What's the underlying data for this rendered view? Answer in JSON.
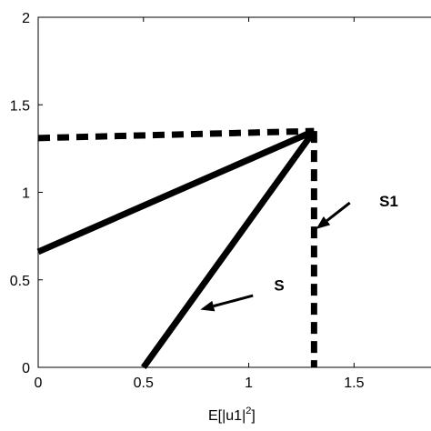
{
  "chart_data": {
    "type": "line",
    "title": "",
    "xlabel": "E[|u1|",
    "xlabel_sup": "2",
    "xlabel_suffix": "]",
    "ylabel": "",
    "xlim": [
      0,
      1.9
    ],
    "ylim": [
      0,
      2
    ],
    "xticks": [
      0,
      0.5,
      1,
      1.5
    ],
    "xtick_labels": [
      "0",
      "0.5",
      "1",
      "1.5"
    ],
    "yticks": [
      0,
      0.5,
      1,
      1.5,
      2
    ],
    "ytick_labels": [
      "0",
      "0.5",
      "1",
      "1.5",
      "2"
    ],
    "grid": false,
    "series": [
      {
        "style": "solid-thick",
        "x": [
          0,
          1.31
        ],
        "y": [
          0.66,
          1.35
        ]
      },
      {
        "style": "solid-thick",
        "x": [
          0.5,
          1.31
        ],
        "y": [
          0,
          1.35
        ]
      },
      {
        "style": "dashed-thick",
        "x": [
          0,
          1.31
        ],
        "y": [
          1.31,
          1.35
        ]
      },
      {
        "style": "dashed-thick",
        "x": [
          1.31,
          1.31
        ],
        "y": [
          1.35,
          0
        ]
      }
    ],
    "annotations": [
      {
        "text": "S",
        "text_at": [
          1.12,
          0.47
        ],
        "arrow_from": [
          1.02,
          0.41
        ],
        "arrow_to": [
          0.77,
          0.33
        ]
      },
      {
        "text": "S1",
        "text_at": [
          1.62,
          0.95
        ],
        "arrow_from": [
          1.48,
          0.94
        ],
        "arrow_to": [
          1.32,
          0.79
        ]
      }
    ]
  }
}
